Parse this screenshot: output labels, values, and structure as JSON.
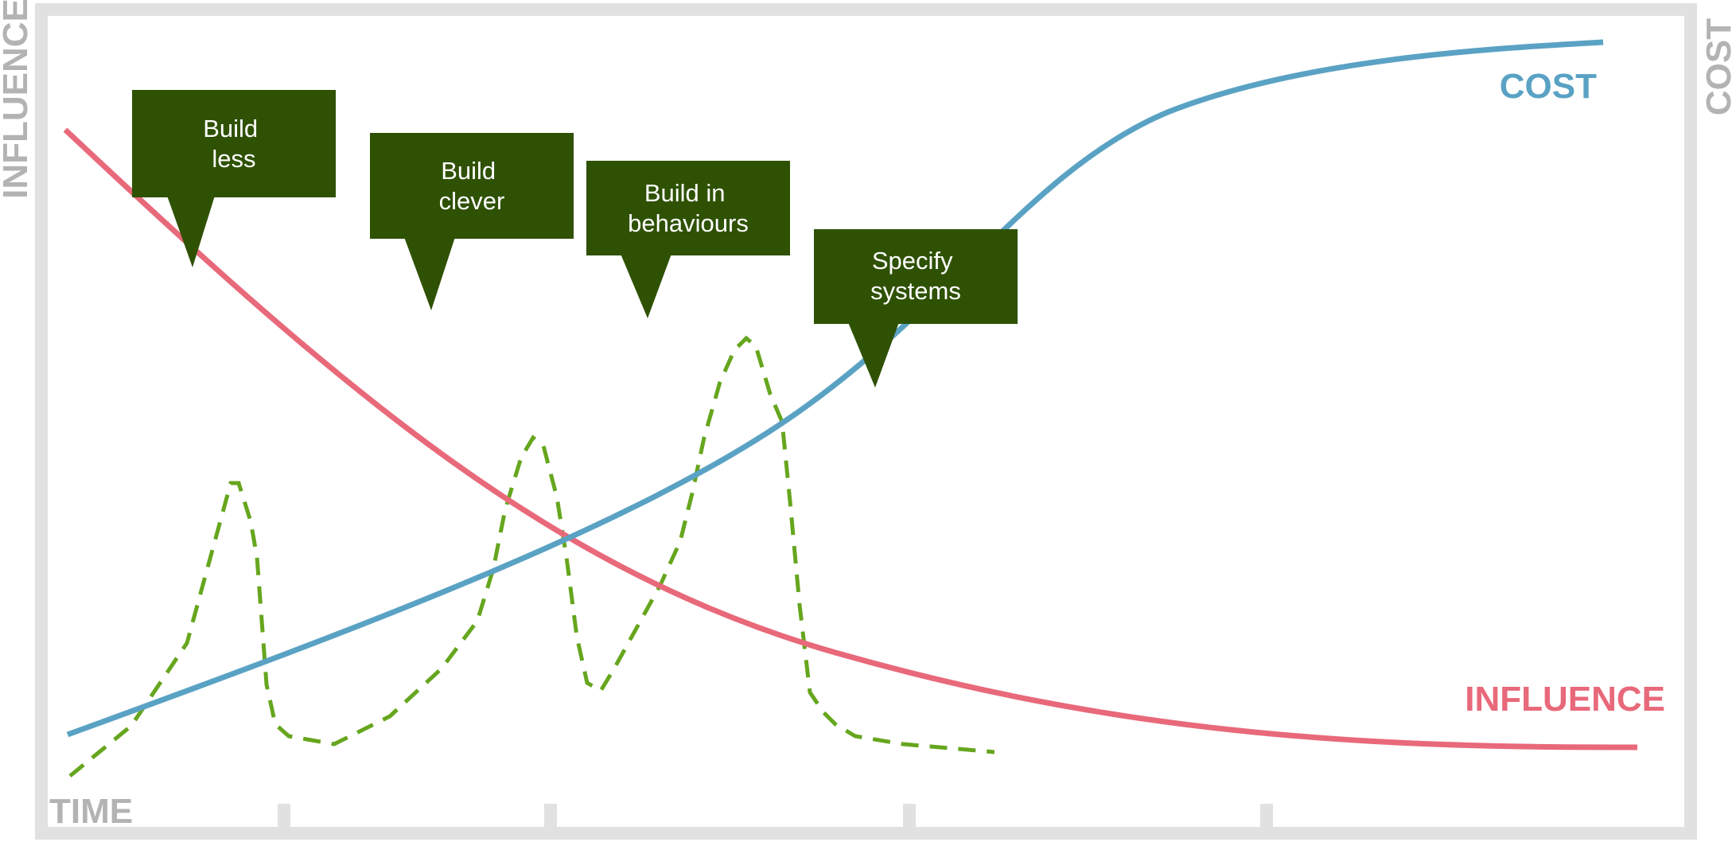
{
  "axes": {
    "left_label": "INFLUENCE",
    "right_label": "COST",
    "bottom_label": "TIME"
  },
  "series": {
    "cost": {
      "label": "COST",
      "color": "#5aa2c4"
    },
    "influence": {
      "label": "INFLUENCE",
      "color": "#e8697a"
    },
    "activity": {
      "color": "#66a61e"
    }
  },
  "frame_color": "#e1e1e1",
  "axis_text_color": "#b3b3b3",
  "callout_color": "#2f5104",
  "callouts": [
    {
      "lines": [
        "Build",
        "less"
      ]
    },
    {
      "lines": [
        "Build",
        "clever"
      ]
    },
    {
      "lines": [
        "Build in",
        "behaviours"
      ]
    },
    {
      "lines": [
        "Specify",
        "systems"
      ]
    }
  ]
}
